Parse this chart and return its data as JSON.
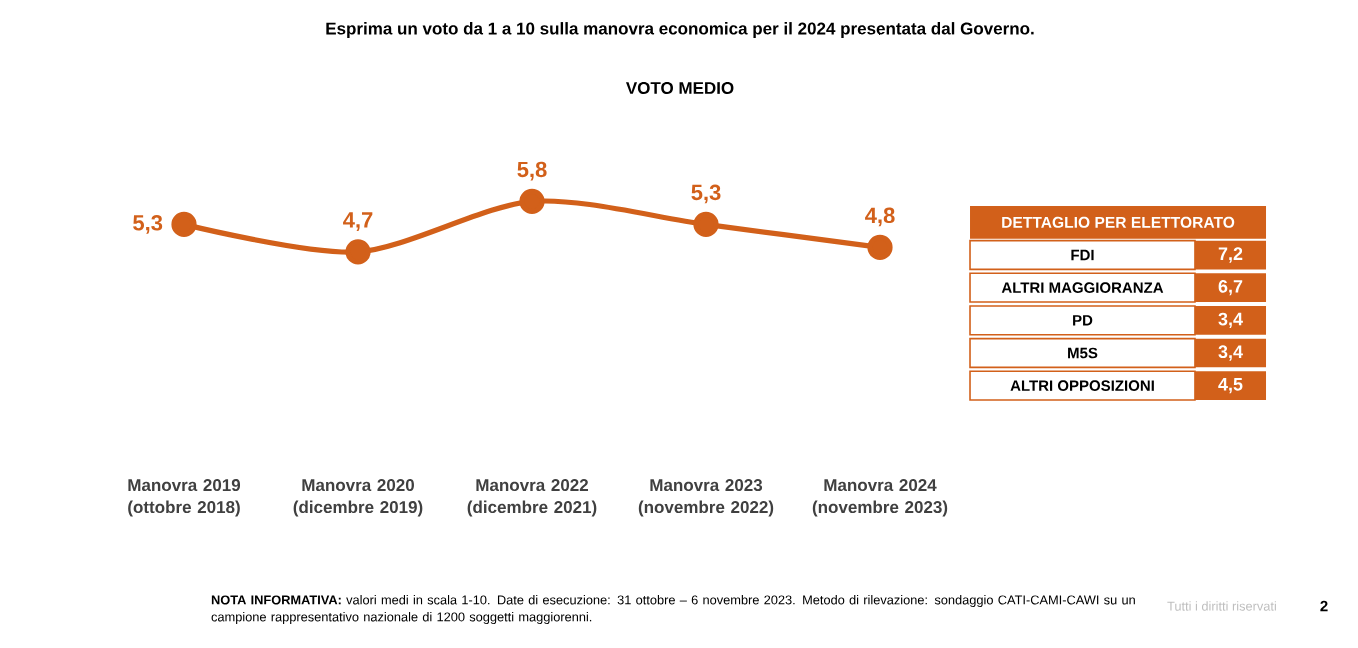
{
  "chart_data": [
    {
      "type": "line",
      "title": "Esprima un voto da 1 a 10 sulla manovra economica per il 2024 presentata dal Governo.",
      "subtitle": "VOTO MEDIO",
      "categories": [
        "Manovra 2019 (ottobre 2018)",
        "Manovra 2020 (dicembre 2019)",
        "Manovra 2022 (dicembre 2021)",
        "Manovra 2023 (novembre 2022)",
        "Manovra 2024 (novembre 2023)"
      ],
      "values": [
        5.3,
        4.7,
        5.8,
        5.3,
        4.8
      ],
      "value_labels": [
        "5,3",
        "4,7",
        "5,8",
        "5,3",
        "4,8"
      ],
      "color": "#d2601a",
      "marker": "circle",
      "line_style": "solid",
      "annotations": [
        "**NOTA INFORMATIVA:** valori medi in scala 1-10. Date di esecuzione: 31 ottobre – 6 novembre 2023. Metodo di rilevazione: sondaggio CATI-CAMI-CAWI su un campione rappresentativo nazionale di 1200 soggetti maggiorenni.",
        "Tutti i diritti riservati",
        "2"
      ]
    },
    {
      "type": "other",
      "title": "DETTAGLIO PER ELETTORATO",
      "categories": [
        "FDI",
        "ALTRI MAGGIORANZA",
        "PD",
        "M5S",
        "ALTRI OPPOSIZIONI"
      ],
      "values": [
        7.2,
        6.7,
        3.4,
        3.4,
        4.5
      ],
      "value_labels": [
        "7,2",
        "6,7",
        "3,4",
        "3,4",
        "4,5"
      ],
      "color": "#d2601a"
    }
  ]
}
